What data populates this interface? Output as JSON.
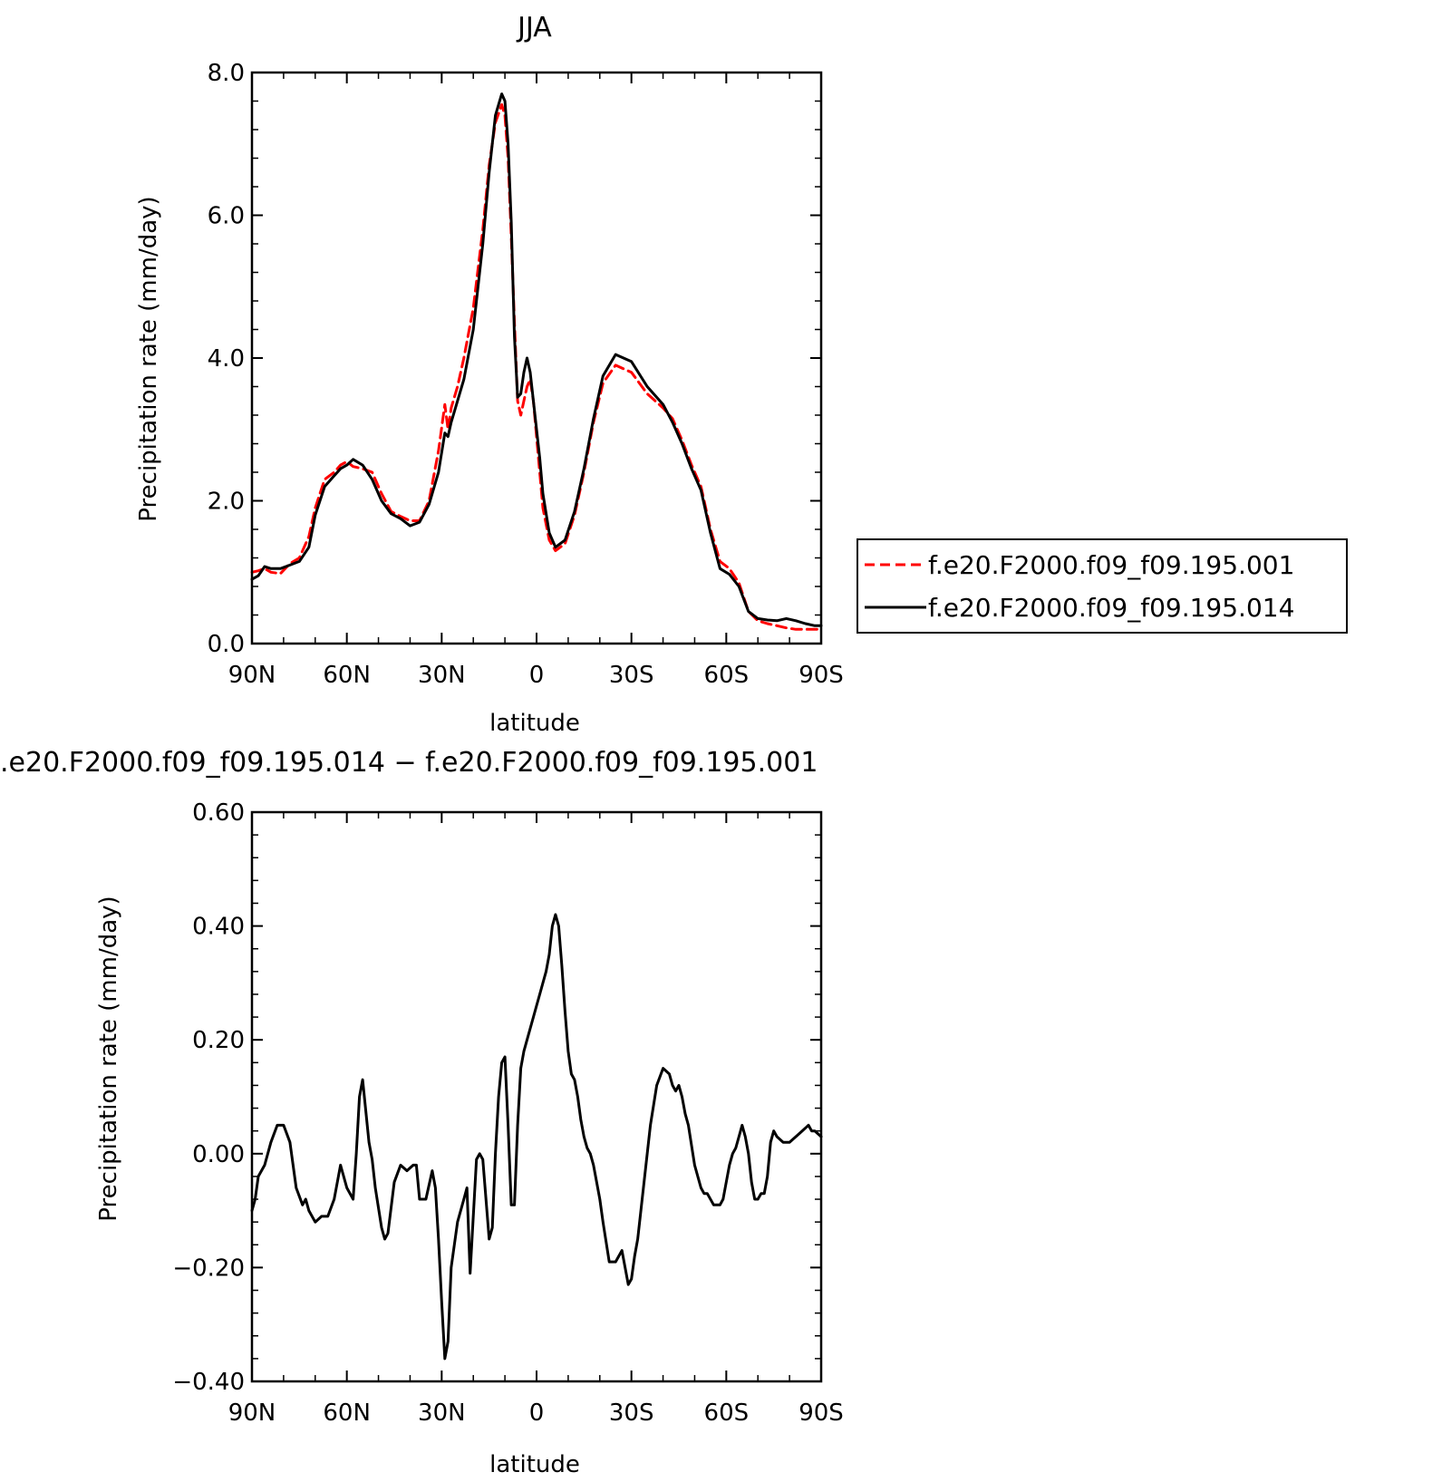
{
  "chart_data": [
    {
      "type": "line",
      "title": "JJA",
      "xlabel": "latitude",
      "ylabel": "Precipitation rate (mm/day)",
      "xlim": [
        90,
        -90
      ],
      "ylim": [
        0,
        8
      ],
      "xticks": [
        90,
        60,
        30,
        0,
        -30,
        -60,
        -90
      ],
      "xtick_labels": [
        "90N",
        "60N",
        "30N",
        "0",
        "30S",
        "60S",
        "90S"
      ],
      "yticks": [
        0,
        2,
        4,
        6,
        8
      ],
      "ytick_labels": [
        "0.0",
        "2.0",
        "4.0",
        "6.0",
        "8.0"
      ],
      "grid": false,
      "legend_position": "outside-right",
      "series": [
        {
          "name": "f.e20.F2000.f09_f09.195.001",
          "color": "#ff0000",
          "style": "dashed",
          "x": [
            90,
            88,
            86,
            84,
            81,
            78,
            75,
            72,
            70,
            67,
            64,
            62,
            60,
            58,
            55,
            52,
            49,
            46,
            43,
            40,
            37,
            34,
            31,
            29,
            28,
            27,
            25,
            23,
            20,
            17,
            15,
            13,
            11,
            10,
            9,
            8,
            7,
            6,
            5,
            4,
            3,
            2,
            1,
            0,
            -1,
            -2,
            -4,
            -6,
            -9,
            -12,
            -15,
            -18,
            -21,
            -25,
            -30,
            -35,
            -40,
            -43,
            -46,
            -49,
            -52,
            -55,
            -58,
            -61,
            -64,
            -67,
            -70,
            -73,
            -76,
            -79,
            -82,
            -85,
            -88,
            -90
          ],
          "values": [
            1.0,
            1.02,
            1.05,
            1.0,
            0.98,
            1.12,
            1.2,
            1.5,
            1.9,
            2.3,
            2.4,
            2.5,
            2.55,
            2.48,
            2.45,
            2.4,
            2.1,
            1.85,
            1.78,
            1.72,
            1.72,
            2.0,
            2.7,
            3.35,
            3.0,
            3.3,
            3.6,
            4.0,
            4.7,
            5.8,
            6.7,
            7.3,
            7.55,
            7.4,
            6.8,
            5.7,
            4.5,
            3.4,
            3.2,
            3.4,
            3.6,
            3.7,
            3.4,
            2.9,
            2.4,
            1.9,
            1.45,
            1.3,
            1.4,
            1.8,
            2.4,
            3.1,
            3.65,
            3.9,
            3.8,
            3.5,
            3.3,
            3.15,
            2.85,
            2.5,
            2.2,
            1.6,
            1.15,
            1.05,
            0.85,
            0.45,
            0.32,
            0.28,
            0.25,
            0.22,
            0.2,
            0.2,
            0.2,
            0.2
          ]
        },
        {
          "name": "f.e20.F2000.f09_f09.195.014",
          "color": "#000000",
          "style": "solid",
          "x": [
            90,
            88,
            86,
            84,
            81,
            78,
            75,
            72,
            70,
            67,
            64,
            62,
            60,
            58,
            55,
            52,
            49,
            46,
            43,
            40,
            37,
            34,
            31,
            29,
            28,
            27,
            25,
            23,
            20,
            17,
            15,
            13,
            11,
            10,
            9,
            8,
            7,
            6,
            5,
            4,
            3,
            2,
            1,
            0,
            -1,
            -2,
            -4,
            -6,
            -9,
            -12,
            -15,
            -18,
            -21,
            -25,
            -30,
            -35,
            -40,
            -43,
            -46,
            -49,
            -52,
            -55,
            -58,
            -61,
            -64,
            -67,
            -70,
            -73,
            -76,
            -79,
            -82,
            -85,
            -88,
            -90
          ],
          "values": [
            0.9,
            0.95,
            1.08,
            1.05,
            1.05,
            1.1,
            1.15,
            1.35,
            1.8,
            2.2,
            2.35,
            2.45,
            2.5,
            2.58,
            2.5,
            2.3,
            2.0,
            1.82,
            1.75,
            1.65,
            1.7,
            1.95,
            2.4,
            2.95,
            2.9,
            3.1,
            3.4,
            3.7,
            4.4,
            5.6,
            6.6,
            7.4,
            7.7,
            7.6,
            7.0,
            5.9,
            4.3,
            3.45,
            3.5,
            3.8,
            4.0,
            3.8,
            3.4,
            3.0,
            2.6,
            2.1,
            1.55,
            1.35,
            1.45,
            1.85,
            2.45,
            3.15,
            3.75,
            4.05,
            3.95,
            3.6,
            3.35,
            3.1,
            2.8,
            2.45,
            2.15,
            1.55,
            1.05,
            0.97,
            0.8,
            0.45,
            0.35,
            0.33,
            0.32,
            0.35,
            0.32,
            0.28,
            0.25,
            0.25
          ]
        }
      ],
      "legend": [
        "f.e20.F2000.f09_f09.195.001",
        "f.e20.F2000.f09_f09.195.014"
      ]
    },
    {
      "type": "line",
      "title": ".e20.F2000.f09_f09.195.014 − f.e20.F2000.f09_f09.195.001",
      "xlabel": "latitude",
      "ylabel": "Precipitation rate (mm/day)",
      "xlim": [
        90,
        -90
      ],
      "ylim": [
        -0.4,
        0.6
      ],
      "xticks": [
        90,
        60,
        30,
        0,
        -30,
        -60,
        -90
      ],
      "xtick_labels": [
        "90N",
        "60N",
        "30N",
        "0",
        "30S",
        "60S",
        "90S"
      ],
      "yticks": [
        -0.4,
        -0.2,
        0.0,
        0.2,
        0.4,
        0.6
      ],
      "ytick_labels": [
        "−0.40",
        "−0.20",
        "0.00",
        "0.20",
        "0.40",
        "0.60"
      ],
      "grid": false,
      "series": [
        {
          "color": "#000000",
          "style": "solid",
          "x": [
            90,
            89,
            88,
            86,
            84,
            82,
            80,
            78,
            76,
            74,
            73,
            72,
            70,
            68,
            66,
            64,
            62,
            60,
            58,
            57,
            56,
            55,
            53,
            52,
            51,
            49,
            48,
            47,
            45,
            43,
            41,
            39,
            38,
            37,
            35,
            33,
            32,
            31,
            30,
            29,
            28,
            27,
            25,
            23,
            22,
            21,
            19,
            18,
            17,
            15,
            14,
            13,
            12,
            11,
            10,
            9,
            8,
            7,
            6,
            5,
            4,
            3,
            2,
            1,
            0,
            -1,
            -2,
            -3,
            -4,
            -5,
            -6,
            -7,
            -8,
            -9,
            -10,
            -11,
            -12,
            -13,
            -14,
            -15,
            -16,
            -17,
            -18,
            -19,
            -20,
            -21,
            -23,
            -25,
            -27,
            -28,
            -29,
            -30,
            -31,
            -32,
            -34,
            -36,
            -38,
            -40,
            -42,
            -43,
            -44,
            -45,
            -46,
            -47,
            -48,
            -50,
            -52,
            -53,
            -54,
            -56,
            -58,
            -59,
            -61,
            -62,
            -63,
            -64,
            -65,
            -66,
            -67,
            -68,
            -69,
            -70,
            -71,
            -72,
            -73,
            -74,
            -75,
            -76,
            -78,
            -80,
            -82,
            -84,
            -86,
            -87,
            -88,
            -90
          ],
          "values": [
            -0.1,
            -0.08,
            -0.04,
            -0.02,
            0.02,
            0.05,
            0.05,
            0.02,
            -0.06,
            -0.09,
            -0.08,
            -0.1,
            -0.12,
            -0.11,
            -0.11,
            -0.08,
            -0.02,
            -0.06,
            -0.08,
            0.0,
            0.1,
            0.13,
            0.02,
            -0.01,
            -0.06,
            -0.13,
            -0.15,
            -0.14,
            -0.05,
            -0.02,
            -0.03,
            -0.02,
            -0.02,
            -0.08,
            -0.08,
            -0.03,
            -0.06,
            -0.15,
            -0.26,
            -0.36,
            -0.33,
            -0.2,
            -0.12,
            -0.08,
            -0.06,
            -0.21,
            -0.01,
            0.0,
            -0.01,
            -0.15,
            -0.13,
            0.0,
            0.1,
            0.16,
            0.17,
            0.05,
            -0.09,
            -0.09,
            0.05,
            0.15,
            0.18,
            0.2,
            0.22,
            0.24,
            0.26,
            0.28,
            0.3,
            0.32,
            0.35,
            0.4,
            0.42,
            0.4,
            0.33,
            0.25,
            0.18,
            0.14,
            0.13,
            0.1,
            0.06,
            0.03,
            0.01,
            0.0,
            -0.02,
            -0.05,
            -0.08,
            -0.12,
            -0.19,
            -0.19,
            -0.17,
            -0.2,
            -0.23,
            -0.22,
            -0.18,
            -0.15,
            -0.05,
            0.05,
            0.12,
            0.15,
            0.14,
            0.12,
            0.11,
            0.12,
            0.1,
            0.07,
            0.05,
            -0.02,
            -0.06,
            -0.07,
            -0.07,
            -0.09,
            -0.09,
            -0.08,
            -0.02,
            0.0,
            0.01,
            0.03,
            0.05,
            0.03,
            0.0,
            -0.05,
            -0.08,
            -0.08,
            -0.07,
            -0.07,
            -0.04,
            0.02,
            0.04,
            0.03,
            0.02,
            0.02,
            0.03,
            0.04,
            0.05,
            0.04,
            0.04,
            0.03
          ]
        }
      ]
    }
  ]
}
